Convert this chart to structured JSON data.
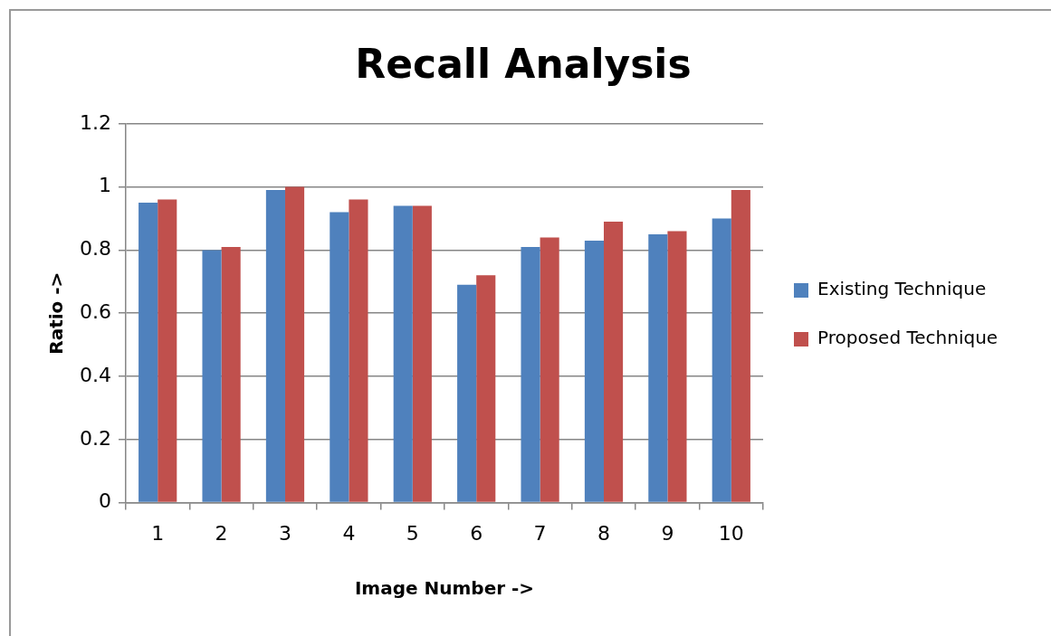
{
  "chart_data": {
    "type": "bar",
    "title": "Recall Analysis",
    "xlabel": "Image Number ->",
    "ylabel": "Ratio ->",
    "categories": [
      "1",
      "2",
      "3",
      "4",
      "5",
      "6",
      "7",
      "8",
      "9",
      "10"
    ],
    "series": [
      {
        "name": "Existing Technique",
        "color": "#4f81bd",
        "values": [
          0.95,
          0.8,
          0.99,
          0.92,
          0.94,
          0.69,
          0.81,
          0.83,
          0.85,
          0.9
        ]
      },
      {
        "name": "Proposed Technique",
        "color": "#c0504d",
        "values": [
          0.96,
          0.81,
          1.0,
          0.96,
          0.94,
          0.72,
          0.84,
          0.89,
          0.86,
          0.99
        ]
      }
    ],
    "ylim": [
      0,
      1.2
    ],
    "yticks": [
      0,
      0.2,
      0.4,
      0.6,
      0.8,
      1,
      1.2
    ],
    "grid": "y",
    "legend": "right"
  }
}
